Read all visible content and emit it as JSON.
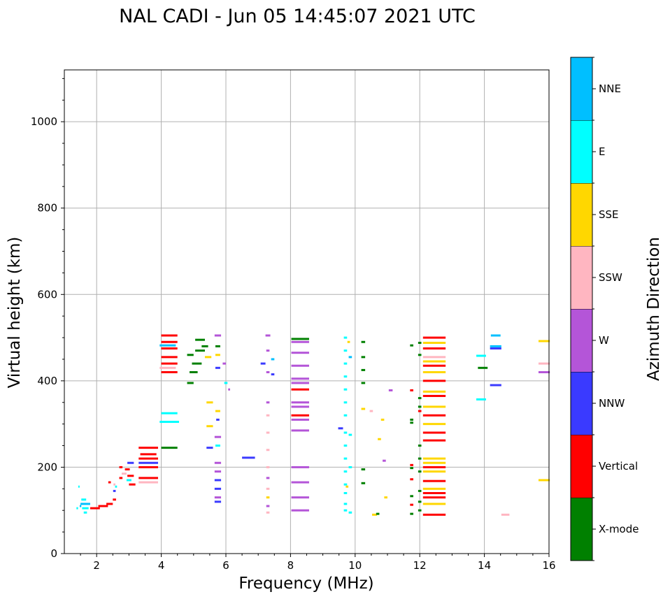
{
  "chart_data": {
    "type": "scatter",
    "title": "NAL CADI - Jun 05 14:45:07 2021 UTC",
    "xlabel": "Frequency (MHz)",
    "ylabel": "Virtual height (km)",
    "xlim": [
      1,
      16
    ],
    "ylim": [
      0,
      1120
    ],
    "xticks": [
      2,
      4,
      6,
      8,
      10,
      12,
      14,
      16
    ],
    "yticks": [
      0,
      200,
      400,
      600,
      800,
      1000
    ],
    "grid": true,
    "colorbar": {
      "label": "Azimuth Direction",
      "categories": [
        {
          "name": "X-mode",
          "color": "#008000"
        },
        {
          "name": "Vertical",
          "color": "#ff0000"
        },
        {
          "name": "NNW",
          "color": "#3a3aff"
        },
        {
          "name": "W",
          "color": "#b455d8"
        },
        {
          "name": "SSW",
          "color": "#ffb6c1"
        },
        {
          "name": "SSE",
          "color": "#ffd700"
        },
        {
          "name": "E",
          "color": "#00ffff"
        },
        {
          "name": "NNE",
          "color": "#00bfff"
        }
      ]
    },
    "points": [
      {
        "f": 1.65,
        "h": 105,
        "w": 0.2,
        "c": "E"
      },
      {
        "f": 1.65,
        "h": 115,
        "w": 0.3,
        "c": "NNE"
      },
      {
        "f": 1.65,
        "h": 95,
        "w": 0.1,
        "c": "E"
      },
      {
        "f": 1.6,
        "h": 125,
        "w": 0.15,
        "c": "E"
      },
      {
        "f": 1.4,
        "h": 105,
        "w": 0.05,
        "c": "E"
      },
      {
        "f": 1.5,
        "h": 110,
        "w": 0.05,
        "c": "NNE"
      },
      {
        "f": 1.45,
        "h": 155,
        "w": 0.04,
        "c": "E"
      },
      {
        "f": 1.95,
        "h": 105,
        "w": 0.3,
        "c": "Vertical"
      },
      {
        "f": 2.2,
        "h": 110,
        "w": 0.3,
        "c": "Vertical"
      },
      {
        "f": 2.4,
        "h": 115,
        "w": 0.2,
        "c": "Vertical"
      },
      {
        "f": 2.55,
        "h": 125,
        "w": 0.1,
        "c": "Vertical"
      },
      {
        "f": 2.55,
        "h": 145,
        "w": 0.08,
        "c": "NNW"
      },
      {
        "f": 2.55,
        "h": 160,
        "w": 0.06,
        "c": "SSW"
      },
      {
        "f": 2.4,
        "h": 165,
        "w": 0.08,
        "c": "Vertical"
      },
      {
        "f": 2.6,
        "h": 155,
        "w": 0.06,
        "c": "E"
      },
      {
        "f": 2.75,
        "h": 175,
        "w": 0.1,
        "c": "Vertical"
      },
      {
        "f": 2.75,
        "h": 200,
        "w": 0.1,
        "c": "Vertical"
      },
      {
        "f": 2.85,
        "h": 185,
        "w": 0.15,
        "c": "SSW"
      },
      {
        "f": 2.95,
        "h": 195,
        "w": 0.15,
        "c": "Vertical"
      },
      {
        "f": 3.05,
        "h": 210,
        "w": 0.2,
        "c": "NNW"
      },
      {
        "f": 3.05,
        "h": 180,
        "w": 0.2,
        "c": "Vertical"
      },
      {
        "f": 3.1,
        "h": 160,
        "w": 0.2,
        "c": "Vertical"
      },
      {
        "f": 3.0,
        "h": 170,
        "w": 0.15,
        "c": "E"
      },
      {
        "f": 3.6,
        "h": 165,
        "w": 0.6,
        "c": "SSW"
      },
      {
        "f": 3.6,
        "h": 175,
        "w": 0.6,
        "c": "Vertical"
      },
      {
        "f": 3.6,
        "h": 200,
        "w": 0.6,
        "c": "Vertical"
      },
      {
        "f": 3.6,
        "h": 210,
        "w": 0.6,
        "c": "NNW"
      },
      {
        "f": 3.6,
        "h": 220,
        "w": 0.6,
        "c": "Vertical"
      },
      {
        "f": 3.6,
        "h": 245,
        "w": 0.6,
        "c": "Vertical"
      },
      {
        "f": 3.6,
        "h": 230,
        "w": 0.5,
        "c": "Vertical"
      },
      {
        "f": 4.25,
        "h": 245,
        "w": 0.5,
        "c": "X-mode"
      },
      {
        "f": 4.25,
        "h": 305,
        "w": 0.6,
        "c": "E"
      },
      {
        "f": 4.25,
        "h": 325,
        "w": 0.5,
        "c": "E"
      },
      {
        "f": 4.25,
        "h": 420,
        "w": 0.5,
        "c": "Vertical"
      },
      {
        "f": 4.25,
        "h": 440,
        "w": 0.5,
        "c": "Vertical"
      },
      {
        "f": 4.25,
        "h": 455,
        "w": 0.5,
        "c": "Vertical"
      },
      {
        "f": 4.25,
        "h": 475,
        "w": 0.5,
        "c": "Vertical"
      },
      {
        "f": 4.25,
        "h": 490,
        "w": 0.5,
        "c": "Vertical"
      },
      {
        "f": 4.25,
        "h": 505,
        "w": 0.5,
        "c": "Vertical"
      },
      {
        "f": 4.2,
        "h": 482,
        "w": 0.5,
        "c": "NNE"
      },
      {
        "f": 4.2,
        "h": 430,
        "w": 0.5,
        "c": "SSW"
      },
      {
        "f": 4.9,
        "h": 395,
        "w": 0.2,
        "c": "X-mode"
      },
      {
        "f": 5.0,
        "h": 420,
        "w": 0.25,
        "c": "X-mode"
      },
      {
        "f": 5.1,
        "h": 440,
        "w": 0.3,
        "c": "X-mode"
      },
      {
        "f": 5.2,
        "h": 470,
        "w": 0.3,
        "c": "X-mode"
      },
      {
        "f": 5.2,
        "h": 495,
        "w": 0.3,
        "c": "X-mode"
      },
      {
        "f": 5.35,
        "h": 480,
        "w": 0.2,
        "c": "X-mode"
      },
      {
        "f": 4.9,
        "h": 460,
        "w": 0.2,
        "c": "X-mode"
      },
      {
        "f": 5.45,
        "h": 455,
        "w": 0.2,
        "c": "SSE"
      },
      {
        "f": 5.5,
        "h": 350,
        "w": 0.2,
        "c": "SSE"
      },
      {
        "f": 5.5,
        "h": 295,
        "w": 0.2,
        "c": "SSE"
      },
      {
        "f": 5.5,
        "h": 245,
        "w": 0.2,
        "c": "NNW"
      },
      {
        "f": 5.75,
        "h": 505,
        "w": 0.2,
        "c": "W"
      },
      {
        "f": 5.75,
        "h": 480,
        "w": 0.15,
        "c": "X-mode"
      },
      {
        "f": 5.75,
        "h": 460,
        "w": 0.15,
        "c": "SSE"
      },
      {
        "f": 5.75,
        "h": 430,
        "w": 0.15,
        "c": "NNW"
      },
      {
        "f": 5.75,
        "h": 330,
        "w": 0.15,
        "c": "SSE"
      },
      {
        "f": 5.75,
        "h": 310,
        "w": 0.1,
        "c": "NNW"
      },
      {
        "f": 5.75,
        "h": 270,
        "w": 0.2,
        "c": "W"
      },
      {
        "f": 5.75,
        "h": 250,
        "w": 0.15,
        "c": "E"
      },
      {
        "f": 5.75,
        "h": 210,
        "w": 0.2,
        "c": "W"
      },
      {
        "f": 5.75,
        "h": 190,
        "w": 0.2,
        "c": "W"
      },
      {
        "f": 5.75,
        "h": 170,
        "w": 0.2,
        "c": "NNW"
      },
      {
        "f": 5.75,
        "h": 150,
        "w": 0.2,
        "c": "NNW"
      },
      {
        "f": 5.75,
        "h": 130,
        "w": 0.2,
        "c": "W"
      },
      {
        "f": 5.75,
        "h": 120,
        "w": 0.2,
        "c": "NNW"
      },
      {
        "f": 5.95,
        "h": 440,
        "w": 0.1,
        "c": "W"
      },
      {
        "f": 6.0,
        "h": 395,
        "w": 0.1,
        "c": "E"
      },
      {
        "f": 6.1,
        "h": 380,
        "w": 0.06,
        "c": "W"
      },
      {
        "f": 6.7,
        "h": 222,
        "w": 0.4,
        "c": "NNW"
      },
      {
        "f": 7.15,
        "h": 440,
        "w": 0.15,
        "c": "NNW"
      },
      {
        "f": 7.3,
        "h": 505,
        "w": 0.15,
        "c": "W"
      },
      {
        "f": 7.3,
        "h": 470,
        "w": 0.1,
        "c": "W"
      },
      {
        "f": 7.3,
        "h": 420,
        "w": 0.1,
        "c": "W"
      },
      {
        "f": 7.3,
        "h": 350,
        "w": 0.1,
        "c": "W"
      },
      {
        "f": 7.3,
        "h": 320,
        "w": 0.1,
        "c": "SSW"
      },
      {
        "f": 7.3,
        "h": 280,
        "w": 0.1,
        "c": "SSW"
      },
      {
        "f": 7.3,
        "h": 240,
        "w": 0.1,
        "c": "SSW"
      },
      {
        "f": 7.3,
        "h": 200,
        "w": 0.1,
        "c": "SSW"
      },
      {
        "f": 7.3,
        "h": 175,
        "w": 0.1,
        "c": "W"
      },
      {
        "f": 7.3,
        "h": 150,
        "w": 0.1,
        "c": "SSW"
      },
      {
        "f": 7.3,
        "h": 130,
        "w": 0.1,
        "c": "SSE"
      },
      {
        "f": 7.3,
        "h": 110,
        "w": 0.1,
        "c": "W"
      },
      {
        "f": 7.3,
        "h": 95,
        "w": 0.1,
        "c": "SSW"
      },
      {
        "f": 7.45,
        "h": 415,
        "w": 0.1,
        "c": "NNW"
      },
      {
        "f": 7.45,
        "h": 450,
        "w": 0.1,
        "c": "NNE"
      },
      {
        "f": 8.3,
        "h": 497,
        "w": 0.55,
        "c": "X-mode"
      },
      {
        "f": 8.3,
        "h": 490,
        "w": 0.55,
        "c": "W"
      },
      {
        "f": 8.3,
        "h": 465,
        "w": 0.55,
        "c": "W"
      },
      {
        "f": 8.3,
        "h": 435,
        "w": 0.55,
        "c": "W"
      },
      {
        "f": 8.3,
        "h": 405,
        "w": 0.55,
        "c": "W"
      },
      {
        "f": 8.3,
        "h": 395,
        "w": 0.55,
        "c": "W"
      },
      {
        "f": 8.3,
        "h": 380,
        "w": 0.55,
        "c": "Vertical"
      },
      {
        "f": 8.3,
        "h": 350,
        "w": 0.55,
        "c": "W"
      },
      {
        "f": 8.3,
        "h": 340,
        "w": 0.55,
        "c": "W"
      },
      {
        "f": 8.3,
        "h": 320,
        "w": 0.55,
        "c": "Vertical"
      },
      {
        "f": 8.3,
        "h": 310,
        "w": 0.55,
        "c": "W"
      },
      {
        "f": 8.3,
        "h": 285,
        "w": 0.55,
        "c": "W"
      },
      {
        "f": 8.3,
        "h": 200,
        "w": 0.55,
        "c": "W"
      },
      {
        "f": 8.3,
        "h": 165,
        "w": 0.55,
        "c": "W"
      },
      {
        "f": 8.3,
        "h": 130,
        "w": 0.55,
        "c": "W"
      },
      {
        "f": 8.3,
        "h": 100,
        "w": 0.55,
        "c": "W"
      },
      {
        "f": 9.7,
        "h": 500,
        "w": 0.1,
        "c": "E"
      },
      {
        "f": 9.7,
        "h": 470,
        "w": 0.1,
        "c": "E"
      },
      {
        "f": 9.7,
        "h": 440,
        "w": 0.1,
        "c": "E"
      },
      {
        "f": 9.7,
        "h": 410,
        "w": 0.1,
        "c": "E"
      },
      {
        "f": 9.7,
        "h": 380,
        "w": 0.1,
        "c": "E"
      },
      {
        "f": 9.7,
        "h": 350,
        "w": 0.1,
        "c": "E"
      },
      {
        "f": 9.7,
        "h": 320,
        "w": 0.1,
        "c": "E"
      },
      {
        "f": 9.7,
        "h": 280,
        "w": 0.1,
        "c": "E"
      },
      {
        "f": 9.7,
        "h": 250,
        "w": 0.1,
        "c": "E"
      },
      {
        "f": 9.7,
        "h": 220,
        "w": 0.1,
        "c": "E"
      },
      {
        "f": 9.7,
        "h": 190,
        "w": 0.1,
        "c": "E"
      },
      {
        "f": 9.7,
        "h": 160,
        "w": 0.1,
        "c": "E"
      },
      {
        "f": 9.7,
        "h": 140,
        "w": 0.1,
        "c": "E"
      },
      {
        "f": 9.7,
        "h": 115,
        "w": 0.1,
        "c": "E"
      },
      {
        "f": 9.7,
        "h": 100,
        "w": 0.1,
        "c": "E"
      },
      {
        "f": 9.85,
        "h": 455,
        "w": 0.1,
        "c": "NNE"
      },
      {
        "f": 9.85,
        "h": 275,
        "w": 0.1,
        "c": "E"
      },
      {
        "f": 9.85,
        "h": 200,
        "w": 0.1,
        "c": "E"
      },
      {
        "f": 9.85,
        "h": 95,
        "w": 0.1,
        "c": "E"
      },
      {
        "f": 9.55,
        "h": 290,
        "w": 0.15,
        "c": "NNW"
      },
      {
        "f": 9.75,
        "h": 155,
        "w": 0.08,
        "c": "SSE"
      },
      {
        "f": 9.8,
        "h": 490,
        "w": 0.08,
        "c": "SSE"
      },
      {
        "f": 10.25,
        "h": 490,
        "w": 0.12,
        "c": "X-mode"
      },
      {
        "f": 10.25,
        "h": 455,
        "w": 0.12,
        "c": "X-mode"
      },
      {
        "f": 10.25,
        "h": 425,
        "w": 0.12,
        "c": "X-mode"
      },
      {
        "f": 10.25,
        "h": 395,
        "w": 0.12,
        "c": "X-mode"
      },
      {
        "f": 10.25,
        "h": 335,
        "w": 0.12,
        "c": "SSE"
      },
      {
        "f": 10.25,
        "h": 195,
        "w": 0.12,
        "c": "X-mode"
      },
      {
        "f": 10.25,
        "h": 163,
        "w": 0.12,
        "c": "X-mode"
      },
      {
        "f": 10.6,
        "h": 90,
        "w": 0.15,
        "c": "SSE"
      },
      {
        "f": 10.7,
        "h": 92,
        "w": 0.1,
        "c": "X-mode"
      },
      {
        "f": 10.5,
        "h": 330,
        "w": 0.1,
        "c": "SSW"
      },
      {
        "f": 10.75,
        "h": 265,
        "w": 0.1,
        "c": "SSE"
      },
      {
        "f": 10.85,
        "h": 310,
        "w": 0.1,
        "c": "SSE"
      },
      {
        "f": 10.9,
        "h": 215,
        "w": 0.1,
        "c": "W"
      },
      {
        "f": 10.95,
        "h": 130,
        "w": 0.1,
        "c": "SSE"
      },
      {
        "f": 11.1,
        "h": 378,
        "w": 0.12,
        "c": "W"
      },
      {
        "f": 11.75,
        "h": 482,
        "w": 0.1,
        "c": "X-mode"
      },
      {
        "f": 11.75,
        "h": 378,
        "w": 0.1,
        "c": "Vertical"
      },
      {
        "f": 11.75,
        "h": 310,
        "w": 0.1,
        "c": "X-mode"
      },
      {
        "f": 11.75,
        "h": 303,
        "w": 0.1,
        "c": "X-mode"
      },
      {
        "f": 11.75,
        "h": 205,
        "w": 0.1,
        "c": "Vertical"
      },
      {
        "f": 11.75,
        "h": 198,
        "w": 0.1,
        "c": "X-mode"
      },
      {
        "f": 11.75,
        "h": 172,
        "w": 0.1,
        "c": "Vertical"
      },
      {
        "f": 11.75,
        "h": 133,
        "w": 0.1,
        "c": "X-mode"
      },
      {
        "f": 11.75,
        "h": 113,
        "w": 0.1,
        "c": "Vertical"
      },
      {
        "f": 11.75,
        "h": 92,
        "w": 0.1,
        "c": "X-mode"
      },
      {
        "f": 12.0,
        "h": 488,
        "w": 0.1,
        "c": "X-mode"
      },
      {
        "f": 12.0,
        "h": 460,
        "w": 0.1,
        "c": "X-mode"
      },
      {
        "f": 12.0,
        "h": 360,
        "w": 0.1,
        "c": "X-mode"
      },
      {
        "f": 12.0,
        "h": 340,
        "w": 0.1,
        "c": "X-mode"
      },
      {
        "f": 12.0,
        "h": 330,
        "w": 0.1,
        "c": "Vertical"
      },
      {
        "f": 12.0,
        "h": 250,
        "w": 0.1,
        "c": "X-mode"
      },
      {
        "f": 12.0,
        "h": 220,
        "w": 0.1,
        "c": "X-mode"
      },
      {
        "f": 12.0,
        "h": 190,
        "w": 0.1,
        "c": "X-mode"
      },
      {
        "f": 12.0,
        "h": 145,
        "w": 0.1,
        "c": "X-mode"
      },
      {
        "f": 12.0,
        "h": 120,
        "w": 0.1,
        "c": "X-mode"
      },
      {
        "f": 12.0,
        "h": 100,
        "w": 0.1,
        "c": "X-mode"
      },
      {
        "f": 12.45,
        "h": 500,
        "w": 0.7,
        "c": "Vertical"
      },
      {
        "f": 12.45,
        "h": 488,
        "w": 0.7,
        "c": "SSE"
      },
      {
        "f": 12.45,
        "h": 475,
        "w": 0.7,
        "c": "Vertical"
      },
      {
        "f": 12.45,
        "h": 455,
        "w": 0.7,
        "c": "SSW"
      },
      {
        "f": 12.45,
        "h": 445,
        "w": 0.7,
        "c": "SSE"
      },
      {
        "f": 12.45,
        "h": 435,
        "w": 0.7,
        "c": "Vertical"
      },
      {
        "f": 12.45,
        "h": 420,
        "w": 0.7,
        "c": "SSE"
      },
      {
        "f": 12.45,
        "h": 400,
        "w": 0.7,
        "c": "Vertical"
      },
      {
        "f": 12.45,
        "h": 375,
        "w": 0.7,
        "c": "SSE"
      },
      {
        "f": 12.45,
        "h": 365,
        "w": 0.7,
        "c": "Vertical"
      },
      {
        "f": 12.45,
        "h": 340,
        "w": 0.7,
        "c": "SSE"
      },
      {
        "f": 12.45,
        "h": 320,
        "w": 0.7,
        "c": "Vertical"
      },
      {
        "f": 12.45,
        "h": 300,
        "w": 0.7,
        "c": "SSE"
      },
      {
        "f": 12.45,
        "h": 280,
        "w": 0.7,
        "c": "Vertical"
      },
      {
        "f": 12.45,
        "h": 262,
        "w": 0.7,
        "c": "Vertical"
      },
      {
        "f": 12.45,
        "h": 220,
        "w": 0.7,
        "c": "SSE"
      },
      {
        "f": 12.45,
        "h": 210,
        "w": 0.7,
        "c": "SSE"
      },
      {
        "f": 12.45,
        "h": 200,
        "w": 0.7,
        "c": "Vertical"
      },
      {
        "f": 12.45,
        "h": 190,
        "w": 0.7,
        "c": "SSE"
      },
      {
        "f": 12.45,
        "h": 168,
        "w": 0.7,
        "c": "Vertical"
      },
      {
        "f": 12.45,
        "h": 150,
        "w": 0.7,
        "c": "SSE"
      },
      {
        "f": 12.45,
        "h": 140,
        "w": 0.7,
        "c": "Vertical"
      },
      {
        "f": 12.45,
        "h": 130,
        "w": 0.7,
        "c": "Vertical"
      },
      {
        "f": 12.45,
        "h": 115,
        "w": 0.7,
        "c": "SSE"
      },
      {
        "f": 12.45,
        "h": 90,
        "w": 0.7,
        "c": "Vertical"
      },
      {
        "f": 13.9,
        "h": 458,
        "w": 0.3,
        "c": "E"
      },
      {
        "f": 13.95,
        "h": 430,
        "w": 0.3,
        "c": "X-mode"
      },
      {
        "f": 13.9,
        "h": 357,
        "w": 0.3,
        "c": "E"
      },
      {
        "f": 14.35,
        "h": 505,
        "w": 0.3,
        "c": "NNE"
      },
      {
        "f": 14.35,
        "h": 480,
        "w": 0.35,
        "c": "NNE"
      },
      {
        "f": 14.35,
        "h": 475,
        "w": 0.35,
        "c": "NNW"
      },
      {
        "f": 14.35,
        "h": 390,
        "w": 0.35,
        "c": "NNW"
      },
      {
        "f": 14.65,
        "h": 90,
        "w": 0.25,
        "c": "SSW"
      },
      {
        "f": 15.85,
        "h": 492,
        "w": 0.35,
        "c": "SSE"
      },
      {
        "f": 15.85,
        "h": 440,
        "w": 0.35,
        "c": "SSW"
      },
      {
        "f": 15.85,
        "h": 420,
        "w": 0.35,
        "c": "W"
      },
      {
        "f": 15.85,
        "h": 170,
        "w": 0.35,
        "c": "SSE"
      }
    ]
  }
}
